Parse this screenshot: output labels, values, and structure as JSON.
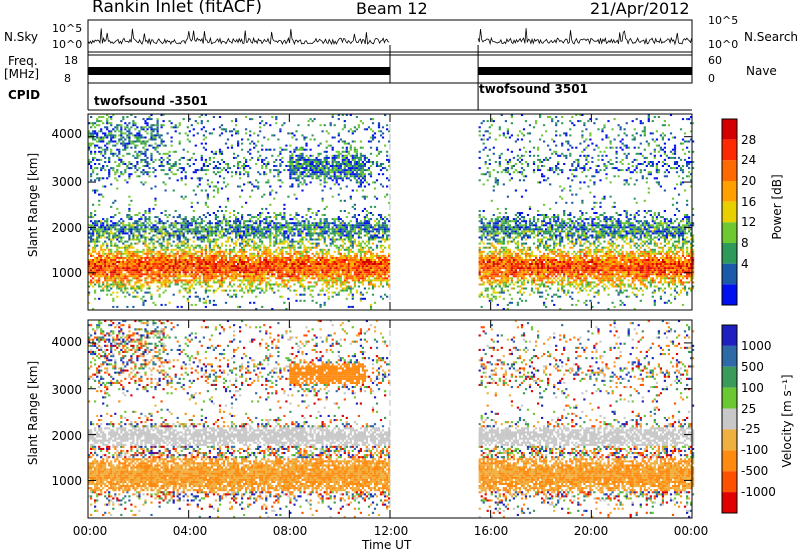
{
  "header": {
    "station": "Rankin Inlet (fitACF)",
    "beam": "Beam 12",
    "date": "21/Apr/2012"
  },
  "small_panels": {
    "nsky_label": "N.Sky",
    "nsky_ticks": [
      "10^5",
      "10^0"
    ],
    "freq_label_1": "Freq.",
    "freq_label_2": "[MHz]",
    "freq_ticks": [
      "18",
      "8"
    ],
    "cpid_label": "CPID",
    "nsearch_label": "N.Search",
    "nave_label": "Nave",
    "right_ticks_top": [
      "10^5",
      "10^0"
    ],
    "right_ticks_mid": [
      "60",
      "0"
    ],
    "cpid_segments": [
      {
        "label": "twofsound -3501",
        "start_hr": 0,
        "end_hr": 12.0
      },
      {
        "label": "twofsound 3501",
        "start_hr": 15.5,
        "end_hr": 24.0
      }
    ]
  },
  "chart_data": [
    {
      "type": "heatmap",
      "title": "",
      "quantity": "Power",
      "ylabel": "Slant Range [km]",
      "xlabel": "",
      "ylim": [
        180,
        4500
      ],
      "yticks": [
        1000,
        2000,
        3000,
        4000
      ],
      "xlim_hr": [
        0,
        24
      ],
      "colorbar_label": "Power [dB]",
      "colorbar_ticks": [
        "28",
        "24",
        "20",
        "16",
        "12",
        "8",
        "4"
      ],
      "colorbar_colors": [
        "#d40000",
        "#ff2a00",
        "#ff6a00",
        "#ff9f00",
        "#e8d000",
        "#6ec832",
        "#2e9a5a",
        "#1a5aa8",
        "#0010ee"
      ],
      "data_gaps_hr": [
        [
          12.0,
          15.5
        ]
      ]
    },
    {
      "type": "heatmap",
      "title": "",
      "quantity": "Velocity",
      "ylabel": "Slant Range [km]",
      "xlabel": "Time UT",
      "ylim": [
        180,
        4500
      ],
      "yticks": [
        1000,
        2000,
        3000,
        4000
      ],
      "xticks": [
        "00:00",
        "04:00",
        "08:00",
        "12:00",
        "16:00",
        "20:00",
        "00:00"
      ],
      "colorbar_label": "Velocity [m s⁻¹]",
      "colorbar_ticks": [
        "1000",
        "500",
        "100",
        "25",
        "-25",
        "-100",
        "-500",
        "-1000"
      ],
      "colorbar_colors": [
        "#2020c0",
        "#2e6aa8",
        "#3a9a5a",
        "#6ac832",
        "#c8c8c8",
        "#f0b040",
        "#ff8a10",
        "#ff5000",
        "#e00000"
      ],
      "data_gaps_hr": [
        [
          12.0,
          15.5
        ]
      ]
    }
  ]
}
